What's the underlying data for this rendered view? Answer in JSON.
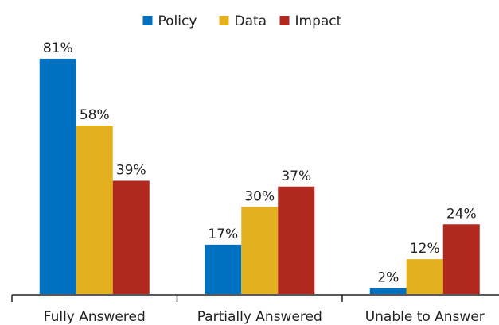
{
  "chart_data": {
    "type": "bar",
    "categories": [
      "Fully Answered",
      "Partially Answered",
      "Unable to Answer"
    ],
    "series": [
      {
        "name": "Policy",
        "color": "#0070c0",
        "values": [
          81,
          17,
          2
        ],
        "value_labels": [
          "81%",
          "17%",
          "2%"
        ]
      },
      {
        "name": "Data",
        "color": "#e5b020",
        "values": [
          58,
          30,
          12
        ],
        "value_labels": [
          "58%",
          "30%",
          "12%"
        ]
      },
      {
        "name": "Impact",
        "color": "#b1281f",
        "values": [
          39,
          37,
          24
        ],
        "value_labels": [
          "39%",
          "37%",
          "24%"
        ]
      }
    ],
    "legend": "top"
  }
}
